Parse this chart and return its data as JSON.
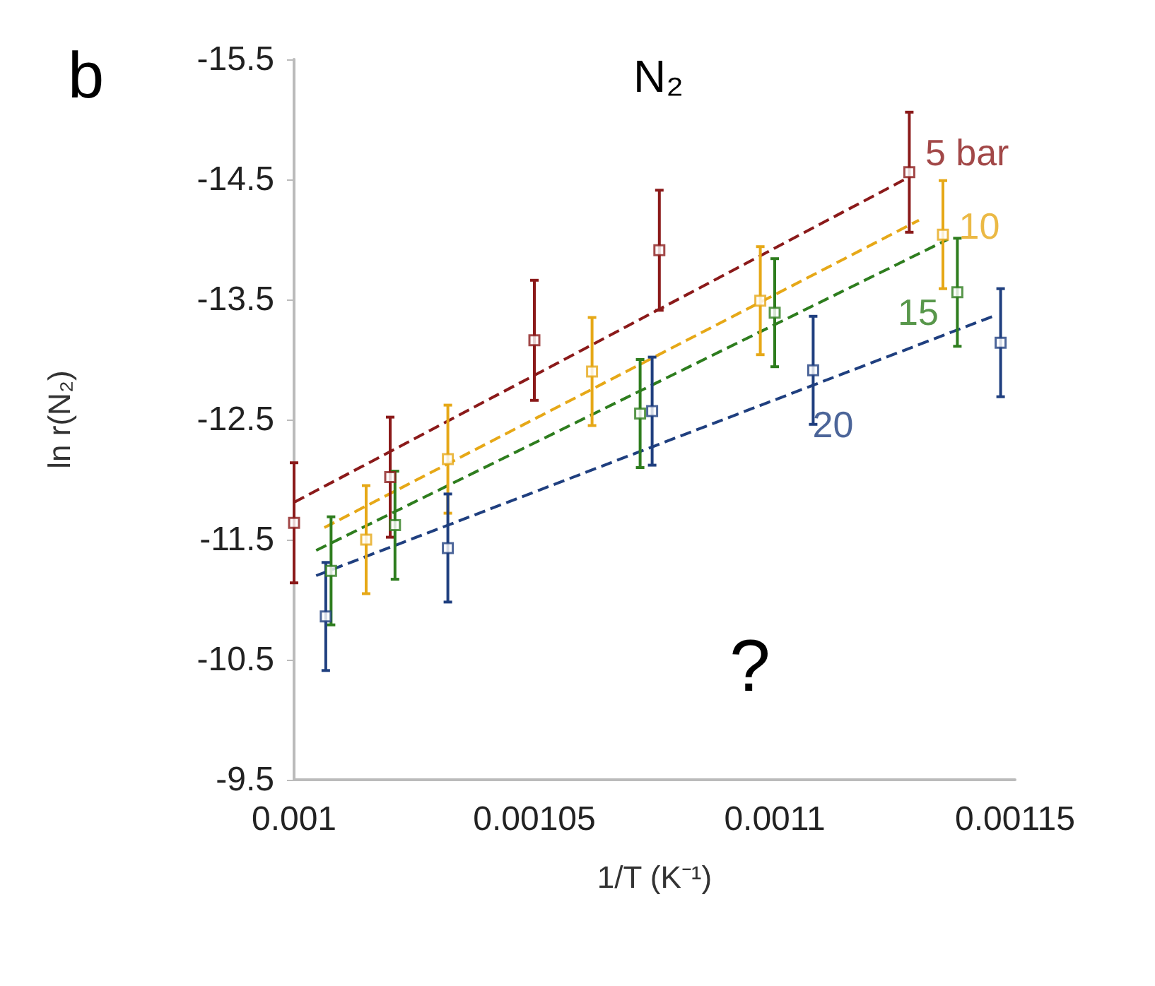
{
  "chart_data": {
    "type": "scatter",
    "xlabel": "1/T (K⁻¹)",
    "ylabel": "ln r(N₂)",
    "annotations": [
      "b",
      "N₂",
      "?"
    ],
    "xlim": [
      0.001,
      0.00115
    ],
    "xticks": [
      0.001,
      0.00105,
      0.0011,
      0.00115
    ],
    "ylim": [
      -9.5,
      -15.5
    ],
    "yticks": [
      -15.5,
      -14.5,
      -13.5,
      -12.5,
      -11.5,
      -10.5,
      -9.5
    ],
    "grid": false,
    "legend": false,
    "marker": "square",
    "series": [
      {
        "name": "5 bar",
        "color": "#8b1a1a",
        "x": [
          0.001,
          0.00102,
          0.00105,
          0.001076,
          0.001128
        ],
        "values": [
          -11.64,
          -12.02,
          -13.16,
          -13.91,
          -14.56
        ],
        "errors": [
          0.5,
          0.5,
          0.5,
          0.5,
          0.5
        ]
      },
      {
        "name": "10",
        "color": "#e6a817",
        "x": [
          0.001015,
          0.001032,
          0.001062,
          0.001097,
          0.001135
        ],
        "values": [
          -11.5,
          -12.17,
          -12.9,
          -13.49,
          -14.04
        ],
        "errors": [
          0.45,
          0.45,
          0.45,
          0.45,
          0.45
        ]
      },
      {
        "name": "15",
        "color": "#2e7d1e",
        "x": [
          0.0010077,
          0.001021,
          0.001072,
          0.0011,
          0.001138
        ],
        "values": [
          -11.24,
          -11.62,
          -12.55,
          -13.39,
          -13.56
        ],
        "errors": [
          0.45,
          0.45,
          0.45,
          0.45,
          0.45
        ]
      },
      {
        "name": "20",
        "color": "#1f3f7f",
        "x": [
          0.0010066,
          0.001032,
          0.0010745,
          0.001108,
          0.001147
        ],
        "values": [
          -10.86,
          -11.43,
          -12.57,
          -12.91,
          -13.14
        ],
        "errors": [
          0.45,
          0.45,
          0.45,
          0.45,
          0.45
        ]
      },
      {
        "type": "line",
        "line_style": "dashed",
        "marker": "none",
        "color": "#8b1a1a",
        "x": [
          0.001,
          0.001128
        ],
        "values": [
          -11.81,
          -14.52
        ]
      },
      {
        "type": "line",
        "line_style": "dashed",
        "marker": "none",
        "color": "#e6a817",
        "x": [
          0.0010063,
          0.00113
        ],
        "values": [
          -11.6,
          -14.16
        ]
      },
      {
        "type": "line",
        "line_style": "dashed",
        "marker": "none",
        "color": "#2e7d1e",
        "x": [
          0.0010046,
          0.001136
        ],
        "values": [
          -11.41,
          -14.0
        ]
      },
      {
        "type": "line",
        "line_style": "dashed",
        "marker": "none",
        "color": "#1f3f7f",
        "x": [
          0.0010046,
          0.0011454
        ],
        "values": [
          -11.2,
          -13.36
        ]
      }
    ]
  }
}
